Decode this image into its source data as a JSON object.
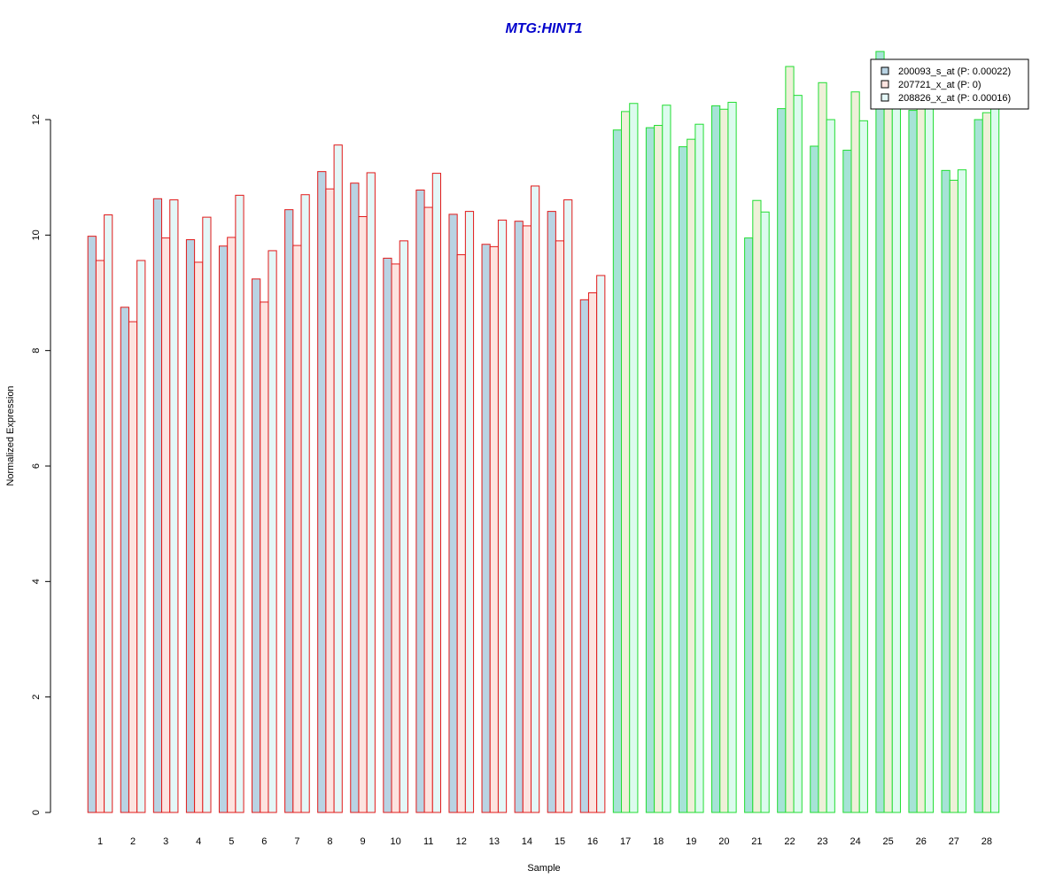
{
  "chart_data": {
    "type": "bar",
    "title": "MTG:HINT1",
    "xlabel": "Sample",
    "ylabel": "Normalized Expression",
    "ylim": [
      0,
      13.2
    ],
    "yticks": [
      0,
      2,
      4,
      6,
      8,
      10,
      12
    ],
    "categories": [
      "1",
      "2",
      "3",
      "4",
      "5",
      "6",
      "7",
      "8",
      "9",
      "10",
      "11",
      "12",
      "13",
      "14",
      "15",
      "16",
      "17",
      "18",
      "19",
      "20",
      "21",
      "22",
      "23",
      "24",
      "25",
      "26",
      "27",
      "28"
    ],
    "series": [
      {
        "name": "200093_s_at (P: 0.00022)",
        "fill": "#b9d3e3",
        "values": [
          9.98,
          8.75,
          10.63,
          9.92,
          9.81,
          9.24,
          10.44,
          11.1,
          10.9,
          9.6,
          10.78,
          10.36,
          9.84,
          10.24,
          10.41,
          8.88,
          11.82,
          11.86,
          11.53,
          12.24,
          9.95,
          12.19,
          11.54,
          11.47,
          13.18,
          12.16,
          11.12,
          12.0
        ]
      },
      {
        "name": "207721_x_at (P: 0)",
        "fill": "#fde3df",
        "values": [
          9.56,
          8.5,
          9.95,
          9.53,
          9.96,
          8.84,
          9.82,
          10.8,
          10.32,
          9.5,
          10.48,
          9.66,
          9.8,
          10.16,
          9.9,
          9.0,
          12.14,
          11.9,
          11.66,
          12.18,
          10.6,
          12.92,
          12.64,
          12.48,
          12.8,
          12.85,
          10.95,
          12.12
        ]
      },
      {
        "name": "208826_x_at (P: 0.00016)",
        "fill": "#e4f7f7",
        "values": [
          10.35,
          9.56,
          10.61,
          10.31,
          10.69,
          9.73,
          10.7,
          11.56,
          11.08,
          9.9,
          11.07,
          10.41,
          10.26,
          10.85,
          10.61,
          9.3,
          12.28,
          12.25,
          11.92,
          12.3,
          10.4,
          12.42,
          12.0,
          11.98,
          12.55,
          12.7,
          11.13,
          12.3
        ]
      }
    ],
    "groups": [
      {
        "categories": [
          "1",
          "2",
          "3",
          "4",
          "5",
          "6",
          "7",
          "8",
          "9",
          "10",
          "11",
          "12",
          "13",
          "14",
          "15",
          "16"
        ],
        "border": "#e11a1a"
      },
      {
        "categories": [
          "17",
          "18",
          "19",
          "20",
          "21",
          "22",
          "23",
          "24",
          "25",
          "26",
          "27",
          "28"
        ],
        "border": "#22dd33"
      }
    ],
    "group2_fills": [
      "#a6e3d6",
      "#eef0d8",
      "#dcfbee"
    ],
    "title_color": "#0000cc",
    "legend_position": "top-right",
    "grid": false
  }
}
